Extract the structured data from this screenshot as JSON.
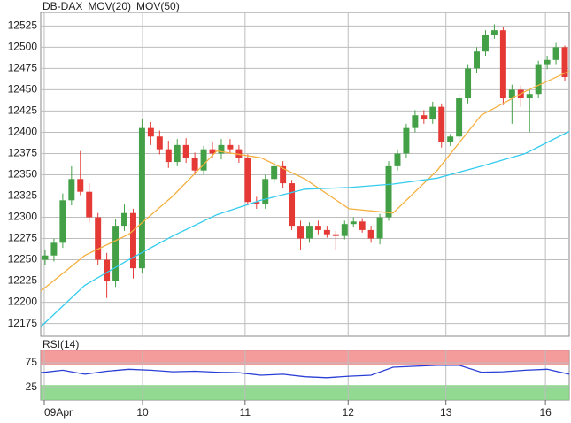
{
  "chart_data": [
    {
      "type": "candlestick",
      "name": "DB-DAX",
      "up_color": "#43a047",
      "down_color": "#e53935",
      "legend_color": "#e53935",
      "open": [
        12250,
        12255,
        12270,
        12320,
        12345,
        12330,
        12300,
        12250,
        12225,
        12290,
        12305,
        12240,
        12405,
        12395,
        12380,
        12365,
        12385,
        12370,
        12355,
        12380,
        12375,
        12385,
        12380,
        12370,
        12318,
        12316,
        12345,
        12360,
        12340,
        12290,
        12275,
        12290,
        12285,
        12280,
        12278,
        12292,
        12295,
        12285,
        12275,
        12300,
        12360,
        12375,
        12405,
        12420,
        12415,
        12430,
        12388,
        12395,
        12440,
        12475,
        12495,
        12515,
        12520,
        12440,
        12450,
        12440,
        12445,
        12480,
        12485,
        12500
      ],
      "high": [
        12262,
        12275,
        12328,
        12360,
        12378,
        12340,
        12305,
        12258,
        12298,
        12315,
        12310,
        12415,
        12412,
        12402,
        12390,
        12392,
        12393,
        12376,
        12384,
        12388,
        12392,
        12392,
        12385,
        12374,
        12324,
        12350,
        12366,
        12366,
        12344,
        12296,
        12294,
        12296,
        12290,
        12284,
        12296,
        12300,
        12299,
        12290,
        12304,
        12366,
        12380,
        12410,
        12426,
        12426,
        12436,
        12434,
        12398,
        12445,
        12480,
        12500,
        12520,
        12527,
        12524,
        12456,
        12455,
        12450,
        12484,
        12490,
        12505,
        12502
      ],
      "low": [
        12244,
        12248,
        12264,
        12314,
        12326,
        12294,
        12244,
        12205,
        12218,
        12284,
        12228,
        12234,
        12385,
        12374,
        12358,
        12360,
        12364,
        12350,
        12350,
        12370,
        12368,
        12376,
        12364,
        12314,
        12310,
        12310,
        12340,
        12334,
        12285,
        12262,
        12270,
        12280,
        12276,
        12262,
        12274,
        12288,
        12282,
        12270,
        12268,
        12296,
        12355,
        12370,
        12400,
        12410,
        12410,
        12382,
        12384,
        12390,
        12434,
        12470,
        12490,
        12510,
        12432,
        12410,
        12430,
        12400,
        12440,
        12474,
        12480,
        12460
      ],
      "close": [
        12255,
        12270,
        12320,
        12345,
        12330,
        12300,
        12250,
        12225,
        12290,
        12305,
        12240,
        12405,
        12395,
        12380,
        12365,
        12385,
        12370,
        12355,
        12380,
        12375,
        12385,
        12380,
        12370,
        12318,
        12316,
        12345,
        12360,
        12340,
        12290,
        12275,
        12290,
        12285,
        12280,
        12278,
        12292,
        12295,
        12285,
        12275,
        12300,
        12360,
        12375,
        12405,
        12420,
        12415,
        12430,
        12388,
        12395,
        12440,
        12475,
        12495,
        12515,
        12520,
        12440,
        12450,
        12440,
        12445,
        12480,
        12485,
        12500,
        12465
      ],
      "series": [
        {
          "name": "MOV(20)",
          "color": "#f5b041",
          "x": [
            0,
            5,
            10,
            15,
            20,
            25,
            30,
            35,
            40,
            45,
            50,
            55,
            60
          ],
          "values": [
            12213,
            12255,
            12280,
            12325,
            12378,
            12370,
            12345,
            12310,
            12305,
            12355,
            12420,
            12448,
            12472
          ]
        },
        {
          "name": "MOV(50)",
          "color": "#33ccee",
          "x": [
            0,
            5,
            10,
            15,
            20,
            25,
            30,
            35,
            40,
            45,
            50,
            55,
            60
          ],
          "values": [
            12171,
            12220,
            12250,
            12278,
            12303,
            12320,
            12333,
            12335,
            12339,
            12346,
            12360,
            12375,
            12401
          ]
        }
      ],
      "xlim": [
        0,
        60
      ],
      "ylim": [
        12160,
        12541
      ],
      "yticks": [
        12175,
        12200,
        12225,
        12250,
        12275,
        12300,
        12325,
        12350,
        12375,
        12400,
        12425,
        12450,
        12475,
        12500,
        12525
      ],
      "grid": true
    },
    {
      "type": "line",
      "title": "RSI(14)",
      "title_color": "#1f3fbf",
      "series": [
        {
          "color": "#2a3fd6",
          "x": [
            0,
            2.5,
            5,
            7.5,
            10,
            12.5,
            15,
            17.5,
            20,
            22.5,
            25,
            27.5,
            30,
            32.5,
            35,
            37.5,
            40,
            42.5,
            45,
            47.5,
            50,
            52.5,
            55,
            57.5,
            60
          ],
          "values": [
            55,
            60,
            52,
            58,
            62,
            60,
            57,
            58,
            56,
            55,
            50,
            52,
            47,
            45,
            48,
            50,
            66,
            68,
            70,
            70,
            56,
            57,
            60,
            62,
            52
          ]
        }
      ],
      "bands": [
        {
          "from": 70,
          "to": 100,
          "color": "#f28b8b"
        },
        {
          "from": 0,
          "to": 30,
          "color": "#7fd47f"
        }
      ],
      "xlim": [
        0,
        60
      ],
      "ylim": [
        0,
        100
      ],
      "yticks": [
        25,
        75
      ],
      "xticks": [
        {
          "value": 0.4,
          "label": "09Apr"
        },
        {
          "value": 11.56,
          "label": "10"
        },
        {
          "value": 23.2,
          "label": "11"
        },
        {
          "value": 34.9,
          "label": "12"
        },
        {
          "value": 46.0,
          "label": "13"
        },
        {
          "value": 57.3,
          "label": "16"
        }
      ],
      "grid": true
    }
  ]
}
